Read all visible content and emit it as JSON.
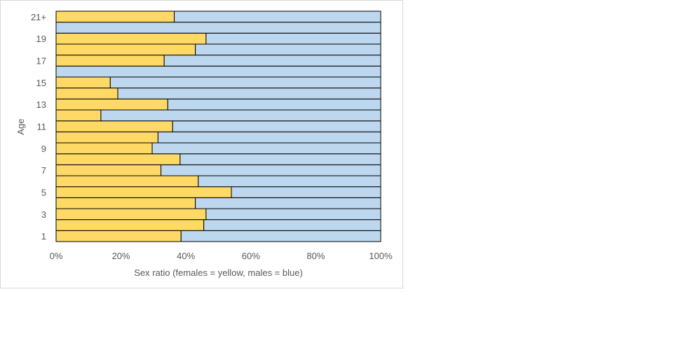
{
  "chart_data": {
    "type": "bar",
    "orientation": "horizontal",
    "stacked": "percent",
    "categories": [
      "1",
      "2",
      "3",
      "4",
      "5",
      "6",
      "7",
      "8",
      "9",
      "10",
      "11",
      "12",
      "13",
      "14",
      "15",
      "16",
      "17",
      "18",
      "19",
      "20",
      "21+"
    ],
    "tick_labels_y": [
      "1",
      "3",
      "5",
      "7",
      "9",
      "11",
      "13",
      "15",
      "17",
      "19",
      "21+"
    ],
    "tick_labels_x": [
      "0%",
      "20%",
      "40%",
      "60%",
      "80%",
      "100%"
    ],
    "series": [
      {
        "name": "females",
        "color": "#FFD966",
        "values": [
          38.5,
          45.5,
          46.2,
          42.9,
          54.0,
          43.8,
          32.3,
          38.2,
          29.6,
          31.4,
          35.9,
          13.8,
          34.4,
          19.0,
          16.7,
          0,
          33.3,
          42.9,
          46.2,
          0,
          36.4
        ]
      },
      {
        "name": "males",
        "color": "#BDD7EE",
        "values": [
          61.5,
          54.5,
          53.8,
          57.1,
          46.0,
          56.2,
          67.7,
          61.8,
          70.4,
          68.6,
          64.1,
          86.2,
          65.6,
          81.0,
          83.3,
          100,
          66.7,
          57.1,
          53.8,
          100,
          63.6
        ]
      }
    ],
    "xlabel": "Sex ratio (females = yellow, males = blue)",
    "ylabel": "Age",
    "xlim": [
      0,
      100
    ],
    "grid": false,
    "legend": "none"
  }
}
